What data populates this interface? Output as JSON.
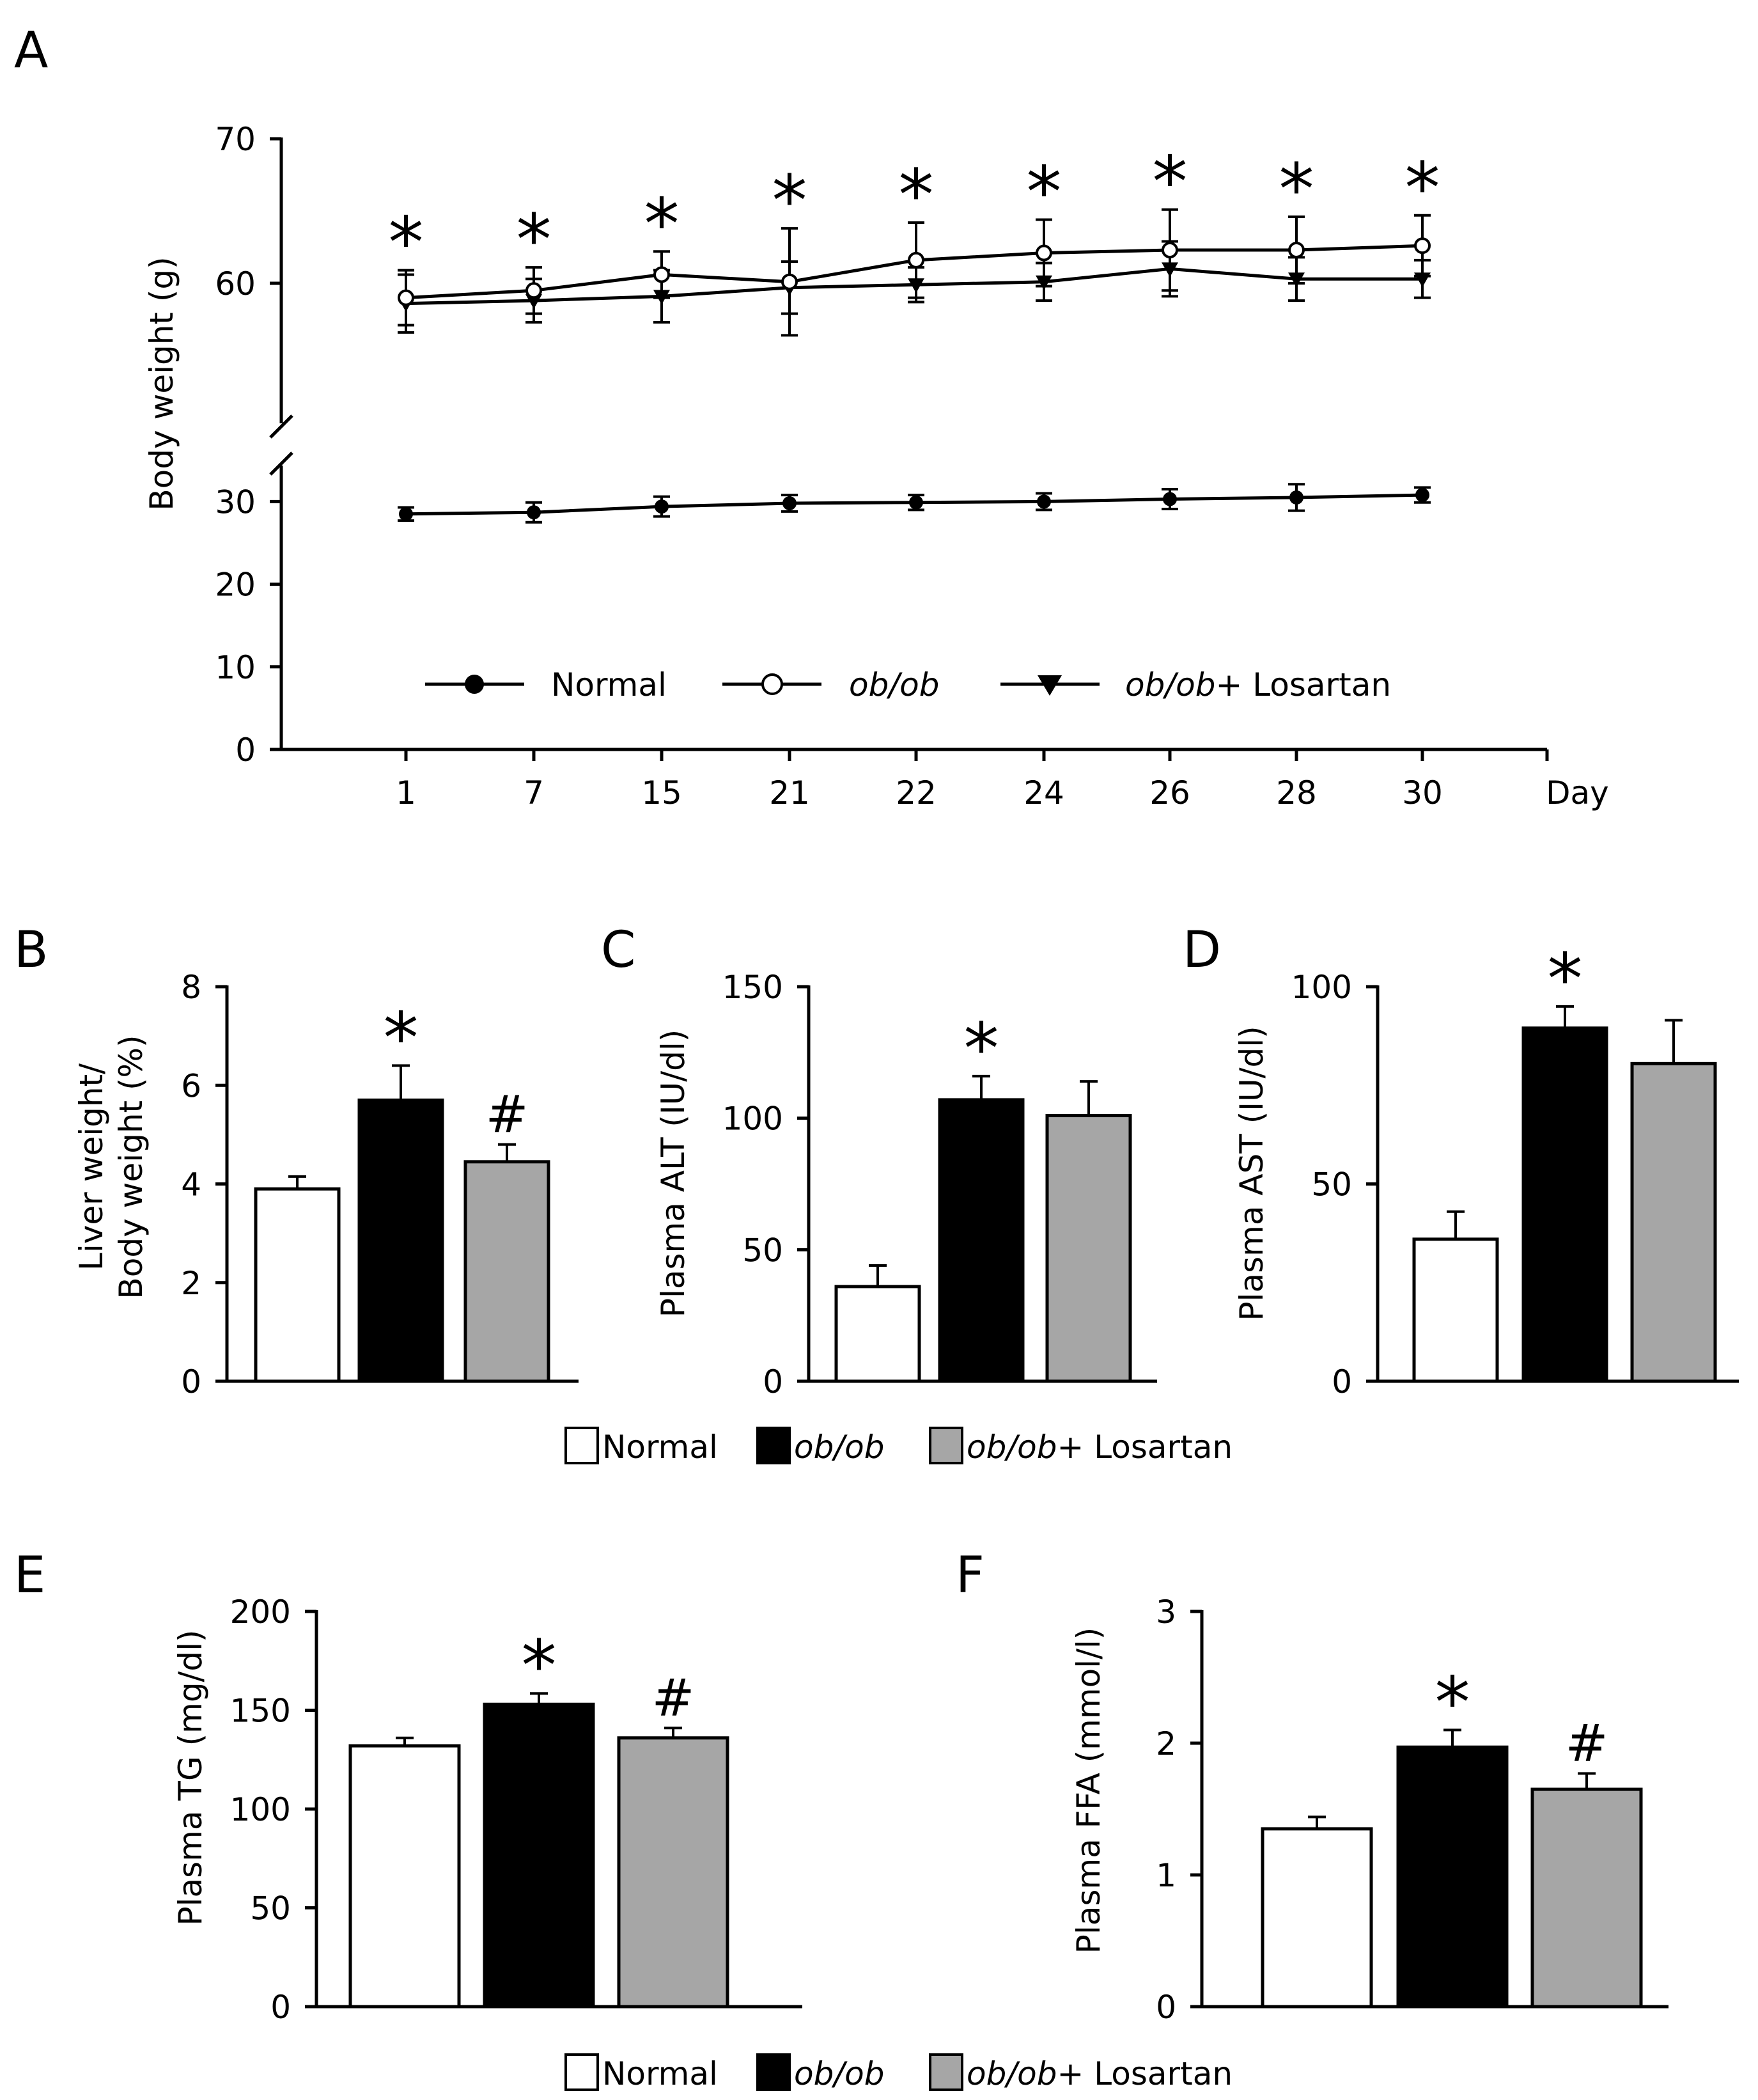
{
  "chart_data": [
    {
      "panel": "A",
      "type": "line",
      "xlabel": "Day",
      "ylabel": "Body weight (g)",
      "categories": [
        "1",
        "7",
        "15",
        "21",
        "22",
        "24",
        "26",
        "28",
        "30"
      ],
      "yticks_lower": [
        "0",
        "10",
        "20",
        "30"
      ],
      "yticks_upper": [
        "60",
        "70"
      ],
      "ylim_lower": [
        0,
        35
      ],
      "ylim_upper": [
        50,
        70
      ],
      "axis_break": true,
      "series": [
        {
          "name": "Normal",
          "marker": "filled-circle",
          "values": [
            28.5,
            28.7,
            29.4,
            29.8,
            29.9,
            30.0,
            30.3,
            30.5,
            30.8
          ],
          "errors": [
            0.8,
            1.2,
            1.2,
            1.0,
            0.9,
            1.0,
            1.2,
            1.6,
            0.9
          ]
        },
        {
          "name": "ob/ob",
          "marker": "open-circle",
          "values": [
            59.0,
            59.5,
            60.6,
            60.1,
            61.6,
            62.1,
            62.3,
            62.3,
            62.6
          ],
          "errors": [
            1.9,
            1.6,
            1.6,
            3.7,
            2.6,
            2.3,
            2.8,
            2.3,
            2.1
          ]
        },
        {
          "name": "ob/ob+ Losartan",
          "marker": "filled-down-triangle",
          "values": [
            58.6,
            58.8,
            59.1,
            59.7,
            59.9,
            60.1,
            61.0,
            60.3,
            60.3
          ],
          "errors": [
            2.0,
            1.5,
            1.8,
            1.8,
            1.2,
            1.3,
            1.9,
            1.5,
            1.3
          ]
        }
      ],
      "annotations": [
        "*",
        "*",
        "*",
        "*",
        "*",
        "*",
        "*",
        "*",
        "*"
      ],
      "legend": {
        "normal": "Normal",
        "obob": "ob/ob",
        "los_italic": "ob/ob",
        "los_rest": "+ Losartan"
      }
    },
    {
      "panel": "B",
      "type": "bar",
      "ylabel_line1": "Liver weight/",
      "ylabel_line2": "Body weight (%)",
      "ylim": [
        0,
        8
      ],
      "yticks": [
        "0",
        "2",
        "4",
        "6",
        "8"
      ],
      "categories": [
        "Normal",
        "ob/ob",
        "ob/ob+ Losartan"
      ],
      "values": [
        3.9,
        5.7,
        4.45
      ],
      "errors": [
        0.25,
        0.7,
        0.35
      ],
      "annotations": [
        "",
        "*",
        "#"
      ]
    },
    {
      "panel": "C",
      "type": "bar",
      "ylabel": "Plasma ALT (IU/dl)",
      "ylim": [
        0,
        150
      ],
      "yticks": [
        "0",
        "50",
        "100",
        "150"
      ],
      "categories": [
        "Normal",
        "ob/ob",
        "ob/ob+ Losartan"
      ],
      "values": [
        36,
        107,
        101
      ],
      "errors": [
        8,
        9,
        13
      ],
      "annotations": [
        "",
        "*",
        ""
      ]
    },
    {
      "panel": "D",
      "type": "bar",
      "ylabel": "Plasma AST (IU/dl)",
      "ylim": [
        0,
        100
      ],
      "yticks": [
        "0",
        "50",
        "100"
      ],
      "categories": [
        "Normal",
        "ob/ob",
        "ob/ob+ Losartan"
      ],
      "values": [
        36,
        89.5,
        80.5
      ],
      "errors": [
        7,
        5.5,
        11
      ],
      "annotations": [
        "",
        "*",
        ""
      ]
    },
    {
      "panel": "E",
      "type": "bar",
      "ylabel": "Plasma TG (mg/dl)",
      "ylim": [
        0,
        200
      ],
      "yticks": [
        "0",
        "50",
        "100",
        "150",
        "200"
      ],
      "categories": [
        "Normal",
        "ob/ob",
        "ob/ob+ Losartan"
      ],
      "values": [
        132,
        153,
        136
      ],
      "errors": [
        4,
        5.5,
        5
      ],
      "annotations": [
        "",
        "*",
        "#"
      ]
    },
    {
      "panel": "F",
      "type": "bar",
      "ylabel": "Plasma FFA (mmol/l)",
      "ylim": [
        0,
        3
      ],
      "yticks": [
        "0",
        "1",
        "2",
        "3"
      ],
      "categories": [
        "Normal",
        "ob/ob",
        "ob/ob+ Losartan"
      ],
      "values": [
        1.35,
        1.97,
        1.65
      ],
      "errors": [
        0.09,
        0.13,
        0.12
      ],
      "annotations": [
        "",
        "*",
        "#"
      ]
    }
  ],
  "bar_legend": {
    "normal": "Normal",
    "obob": "ob/ob",
    "los_italic": "ob/ob",
    "los_rest": "+ Losartan"
  },
  "colors": {
    "normal": "#ffffff",
    "obob": "#000000",
    "losartan": "#a6a6a6",
    "stroke": "#000000"
  }
}
